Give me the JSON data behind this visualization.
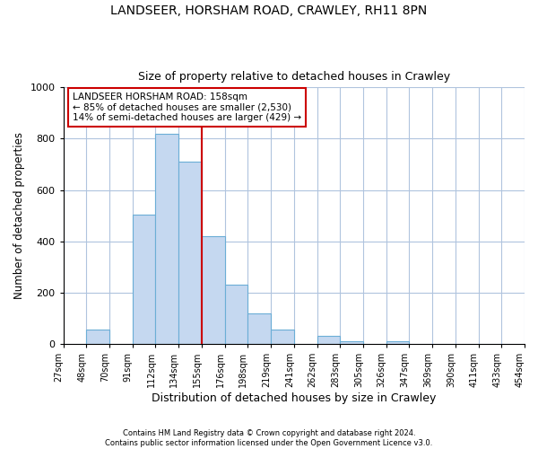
{
  "title": "LANDSEER, HORSHAM ROAD, CRAWLEY, RH11 8PN",
  "subtitle": "Size of property relative to detached houses in Crawley",
  "xlabel": "Distribution of detached houses by size in Crawley",
  "ylabel": "Number of detached properties",
  "footer_line1": "Contains HM Land Registry data © Crown copyright and database right 2024.",
  "footer_line2": "Contains public sector information licensed under the Open Government Licence v3.0.",
  "bin_edges": [
    27,
    48,
    70,
    91,
    112,
    134,
    155,
    176,
    198,
    219,
    241,
    262,
    283,
    305,
    326,
    347,
    369,
    390,
    411,
    433,
    454
  ],
  "bin_labels": [
    "27sqm",
    "48sqm",
    "70sqm",
    "91sqm",
    "112sqm",
    "134sqm",
    "155sqm",
    "176sqm",
    "198sqm",
    "219sqm",
    "241sqm",
    "262sqm",
    "283sqm",
    "305sqm",
    "326sqm",
    "347sqm",
    "369sqm",
    "390sqm",
    "411sqm",
    "433sqm",
    "454sqm"
  ],
  "bar_heights": [
    0,
    55,
    0,
    505,
    820,
    710,
    420,
    230,
    120,
    55,
    0,
    30,
    10,
    0,
    10,
    0,
    0,
    0,
    0,
    0
  ],
  "bar_color": "#c5d8f0",
  "bar_edge_color": "#6baed6",
  "vline_x_idx": 6,
  "vline_color": "#cc0000",
  "ylim": [
    0,
    1000
  ],
  "annotation_title": "LANDSEER HORSHAM ROAD: 158sqm",
  "annotation_line1": "← 85% of detached houses are smaller (2,530)",
  "annotation_line2": "14% of semi-detached houses are larger (429) →",
  "annotation_box_color": "#ffffff",
  "annotation_box_edge": "#cc0000"
}
